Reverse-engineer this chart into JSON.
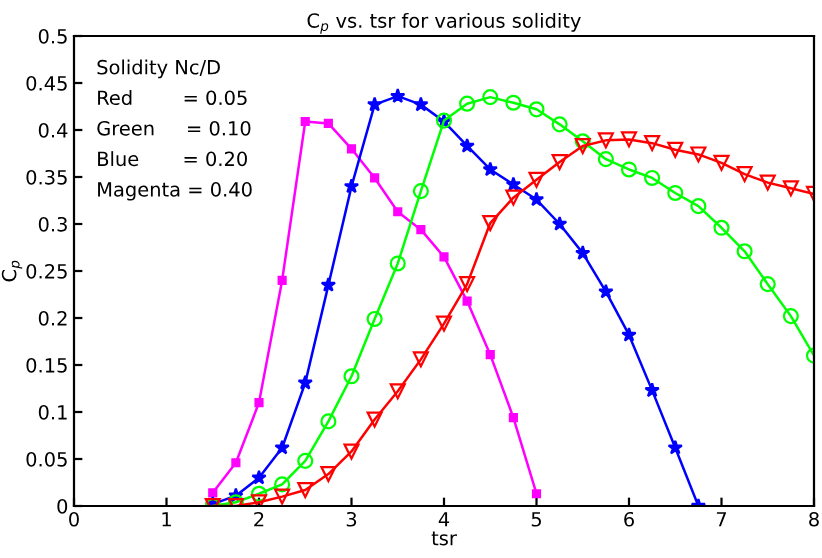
{
  "chart_data": {
    "type": "line",
    "title": "C$_{p}$ vs. tsr for various solidity",
    "xlabel": "tsr",
    "ylabel": "C$_{p}$",
    "annotations": [
      "Solidity Nc/D",
      "Red        = 0.05",
      "Green     = 0.10",
      "Blue       = 0.20",
      "Magenta = 0.40"
    ],
    "xlim": [
      0,
      8
    ],
    "xticks": [
      0,
      1,
      2,
      3,
      4,
      5,
      6,
      7,
      8
    ],
    "ylim": [
      0,
      0.5
    ],
    "yticks": [
      0,
      0.05,
      0.1,
      0.15,
      0.2,
      0.25,
      0.3,
      0.35,
      0.4,
      0.45,
      0.5
    ],
    "grid": false,
    "line_style": "solid",
    "series": [
      {
        "color": "#ff00ff",
        "marker": "square",
        "x": [
          1.5,
          1.75,
          2.0,
          2.25,
          2.5,
          2.75,
          3.0,
          3.25,
          3.5,
          3.75,
          4.0,
          4.25,
          4.5,
          4.75,
          5.0
        ],
        "values": [
          0.014,
          0.046,
          0.11,
          0.24,
          0.409,
          0.407,
          0.38,
          0.349,
          0.313,
          0.294,
          0.265,
          0.218,
          0.161,
          0.094,
          0.013
        ]
      },
      {
        "color": "#0000ff",
        "marker": "star",
        "x": [
          1.5,
          1.75,
          2.0,
          2.25,
          2.5,
          2.75,
          3.0,
          3.25,
          3.5,
          3.75,
          4.0,
          4.25,
          4.5,
          4.75,
          5.0,
          5.25,
          5.5,
          5.75,
          6.0,
          6.25,
          6.5,
          6.75
        ],
        "values": [
          0.002,
          0.011,
          0.03,
          0.062,
          0.131,
          0.235,
          0.34,
          0.427,
          0.436,
          0.427,
          0.409,
          0.383,
          0.358,
          0.342,
          0.326,
          0.3,
          0.269,
          0.228,
          0.182,
          0.123,
          0.062,
          0.0
        ]
      },
      {
        "color": "#00ff00",
        "marker": "circle",
        "x": [
          1.5,
          1.75,
          2.0,
          2.25,
          2.5,
          2.75,
          3.0,
          3.25,
          3.5,
          3.75,
          4.0,
          4.25,
          4.5,
          4.75,
          5.0,
          5.25,
          5.5,
          5.75,
          6.0,
          6.25,
          6.5,
          6.75,
          7.0,
          7.25,
          7.5,
          7.75,
          8.0
        ],
        "values": [
          0.0,
          0.004,
          0.013,
          0.023,
          0.048,
          0.09,
          0.138,
          0.199,
          0.258,
          0.335,
          0.41,
          0.428,
          0.435,
          0.429,
          0.422,
          0.406,
          0.388,
          0.369,
          0.358,
          0.349,
          0.333,
          0.319,
          0.296,
          0.271,
          0.236,
          0.202,
          0.16
        ]
      },
      {
        "color": "#ff0000",
        "marker": "triangle",
        "x": [
          1.5,
          1.75,
          2.0,
          2.25,
          2.5,
          2.75,
          3.0,
          3.25,
          3.5,
          3.75,
          4.0,
          4.25,
          4.5,
          4.75,
          5.0,
          5.25,
          5.5,
          5.75,
          6.0,
          6.25,
          6.5,
          6.75,
          7.0,
          7.25,
          7.5,
          7.75,
          8.0
        ],
        "values": [
          0.0,
          0.0,
          0.004,
          0.01,
          0.017,
          0.034,
          0.058,
          0.092,
          0.122,
          0.156,
          0.194,
          0.236,
          0.301,
          0.328,
          0.347,
          0.366,
          0.383,
          0.389,
          0.39,
          0.386,
          0.379,
          0.374,
          0.365,
          0.353,
          0.344,
          0.338,
          0.332
        ]
      }
    ]
  }
}
